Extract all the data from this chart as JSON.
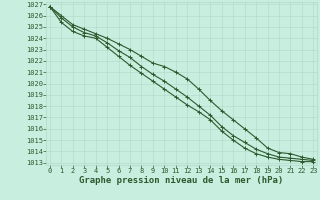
{
  "x": [
    0,
    1,
    2,
    3,
    4,
    5,
    6,
    7,
    8,
    9,
    10,
    11,
    12,
    13,
    14,
    15,
    16,
    17,
    18,
    19,
    20,
    21,
    22,
    23
  ],
  "line1": [
    1026.8,
    1026.0,
    1025.2,
    1024.8,
    1024.4,
    1024.0,
    1023.5,
    1023.0,
    1022.4,
    1021.8,
    1021.5,
    1021.0,
    1020.4,
    1019.5,
    1018.5,
    1017.6,
    1016.8,
    1016.0,
    1015.2,
    1014.3,
    1013.9,
    1013.8,
    1013.5,
    1013.3
  ],
  "line2": [
    1026.8,
    1025.8,
    1025.0,
    1024.5,
    1024.2,
    1023.6,
    1022.9,
    1022.3,
    1021.5,
    1020.8,
    1020.2,
    1019.5,
    1018.8,
    1018.0,
    1017.2,
    1016.2,
    1015.4,
    1014.8,
    1014.2,
    1013.8,
    1013.5,
    1013.4,
    1013.3,
    1013.2
  ],
  "line3": [
    1026.8,
    1025.4,
    1024.6,
    1024.2,
    1024.0,
    1023.2,
    1022.4,
    1021.6,
    1020.9,
    1020.2,
    1019.5,
    1018.8,
    1018.1,
    1017.5,
    1016.8,
    1015.8,
    1015.0,
    1014.3,
    1013.8,
    1013.5,
    1013.3,
    1013.2,
    1013.1,
    1013.1
  ],
  "ylim_min": 1013,
  "ylim_max": 1027,
  "ytick_min": 1013,
  "ytick_max": 1027,
  "bg_color": "#c8eee0",
  "grid_major_color": "#b0d8c8",
  "grid_minor_color": "#b8e0d0",
  "line_color": "#2d5a2d",
  "marker": "+",
  "xlabel": "Graphe pression niveau de la mer (hPa)",
  "xlabel_color": "#2d5a2d",
  "tick_color": "#2d5a2d",
  "tick_labelsize": 5.0,
  "xlabel_fontsize": 6.5
}
